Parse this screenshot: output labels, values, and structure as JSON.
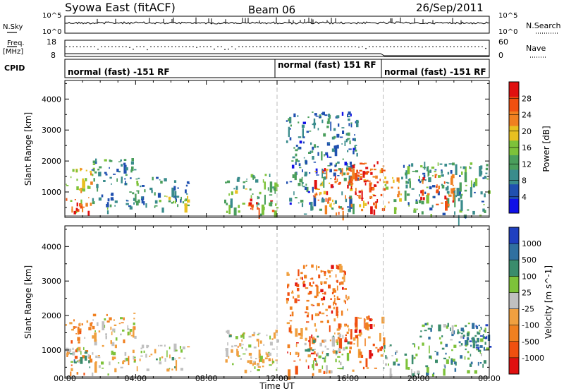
{
  "header": {
    "station": "Syowa East (fitACF)",
    "beam": "Beam 06",
    "date": "26/Sep/2011"
  },
  "aux_panels": {
    "nsky_label": "N.Sky",
    "nsearch_label": "N.Search",
    "count_ticks": [
      "10^5",
      "10^0"
    ],
    "freq_label": "Freq.",
    "freq_unit": "[MHz]",
    "freq_ticks": [
      "18",
      "8"
    ],
    "nave_label": "Nave",
    "nave_ticks": [
      "60",
      "0"
    ],
    "cpid_label": "CPID"
  },
  "cpid_segments": [
    {
      "start_hour": 0,
      "end_hour": 12,
      "label": "normal (fast) -151 RF"
    },
    {
      "start_hour": 12,
      "end_hour": 18,
      "label": "normal (fast) 151 RF"
    },
    {
      "start_hour": 18,
      "end_hour": 24,
      "label": "normal (fast) -151 RF"
    }
  ],
  "chart_data": [
    {
      "type": "heatmap",
      "name": "power",
      "xlabel": "Time UT",
      "ylabel": "Slant Range [km]",
      "xlim": [
        0,
        24
      ],
      "ylim": [
        180,
        4600
      ],
      "xticks": [
        "00:00",
        "04:00",
        "08:00",
        "12:00",
        "16:00",
        "20:00",
        "00:00"
      ],
      "yticks": [
        1000,
        2000,
        3000,
        4000
      ],
      "colorbar_label": "Power [dB]",
      "colorbar_ticks": [
        4,
        8,
        12,
        16,
        20,
        24,
        28
      ],
      "colorbar_range": [
        0,
        32
      ],
      "colors": [
        "#1010e8",
        "#2050b0",
        "#3a8c8c",
        "#4a9e5c",
        "#7dc23a",
        "#e8c020",
        "#f08020",
        "#f05010",
        "#e01010"
      ],
      "regions": [
        {
          "t0": 0.0,
          "t1": 1.5,
          "r0": 300,
          "r1": 1800,
          "level": 0.62
        },
        {
          "t0": 0.0,
          "t1": 1.5,
          "r0": 350,
          "r1": 800,
          "level": 0.85
        },
        {
          "t0": 1.5,
          "t1": 4.0,
          "r0": 250,
          "r1": 2100,
          "level": 0.3
        },
        {
          "t0": 4.0,
          "t1": 7.0,
          "r0": 450,
          "r1": 1500,
          "level": 0.3
        },
        {
          "t0": 5.3,
          "t1": 7.0,
          "r0": 450,
          "r1": 900,
          "level": 0.5
        },
        {
          "t0": 9.0,
          "t1": 12.0,
          "r0": 300,
          "r1": 1600,
          "level": 0.4
        },
        {
          "t0": 10.3,
          "t1": 12.0,
          "r0": 350,
          "r1": 800,
          "level": 0.85
        },
        {
          "t0": 12.5,
          "t1": 16.5,
          "r0": 200,
          "r1": 3600,
          "level": 0.25
        },
        {
          "t0": 14.0,
          "t1": 18.0,
          "r0": 300,
          "r1": 1800,
          "level": 0.75
        },
        {
          "t0": 16.0,
          "t1": 18.0,
          "r0": 400,
          "r1": 2000,
          "level": 0.9
        },
        {
          "t0": 18.0,
          "t1": 19.0,
          "r0": 250,
          "r1": 1500,
          "level": 0.6
        },
        {
          "t0": 19.0,
          "t1": 24.0,
          "r0": 200,
          "r1": 2000,
          "level": 0.35
        },
        {
          "t0": 20.0,
          "t1": 22.0,
          "r0": 600,
          "r1": 1600,
          "level": 0.85
        }
      ]
    },
    {
      "type": "heatmap",
      "name": "velocity",
      "xlabel": "Time UT",
      "ylabel": "Slant Range [km]",
      "xlim": [
        0,
        24
      ],
      "ylim": [
        180,
        4600
      ],
      "xticks": [
        "00:00",
        "04:00",
        "08:00",
        "12:00",
        "16:00",
        "20:00",
        "00:00"
      ],
      "yticks": [
        1000,
        2000,
        3000,
        4000
      ],
      "colorbar_label": "Velocity [m s^-1]",
      "colorbar_ticks": [
        "1000",
        "500",
        "100",
        "25",
        "-25",
        "-100",
        "-500",
        "-1000"
      ],
      "colors": [
        "#e01010",
        "#f05010",
        "#f08020",
        "#f0a040",
        "#c0c0c0",
        "#7dc23a",
        "#3a8c6c",
        "#3070a0",
        "#2040c0"
      ],
      "regions": [
        {
          "t0": 0.0,
          "t1": 1.5,
          "r0": 300,
          "r1": 1900,
          "level": 0.3
        },
        {
          "t0": 0.0,
          "t1": 1.5,
          "r0": 400,
          "r1": 1100,
          "level": 0.62
        },
        {
          "t0": 1.5,
          "t1": 4.0,
          "r0": 250,
          "r1": 2100,
          "level": 0.45
        },
        {
          "t0": 4.0,
          "t1": 7.0,
          "r0": 400,
          "r1": 1200,
          "level": 0.55
        },
        {
          "t0": 9.0,
          "t1": 12.0,
          "r0": 300,
          "r1": 1600,
          "level": 0.5
        },
        {
          "t0": 10.0,
          "t1": 12.0,
          "r0": 350,
          "r1": 900,
          "level": 0.45
        },
        {
          "t0": 12.5,
          "t1": 16.0,
          "r0": 200,
          "r1": 3500,
          "level": 0.25
        },
        {
          "t0": 13.5,
          "t1": 16.0,
          "r0": 400,
          "r1": 1500,
          "level": 0.62
        },
        {
          "t0": 16.0,
          "t1": 18.0,
          "r0": 400,
          "r1": 2000,
          "level": 0.25
        },
        {
          "t0": 18.0,
          "t1": 20.0,
          "r0": 300,
          "r1": 1200,
          "level": 0.65
        },
        {
          "t0": 20.0,
          "t1": 24.0,
          "r0": 250,
          "r1": 1800,
          "level": 0.7
        },
        {
          "t0": 22.5,
          "t1": 24.0,
          "r0": 900,
          "r1": 1800,
          "level": 0.85
        }
      ]
    }
  ]
}
